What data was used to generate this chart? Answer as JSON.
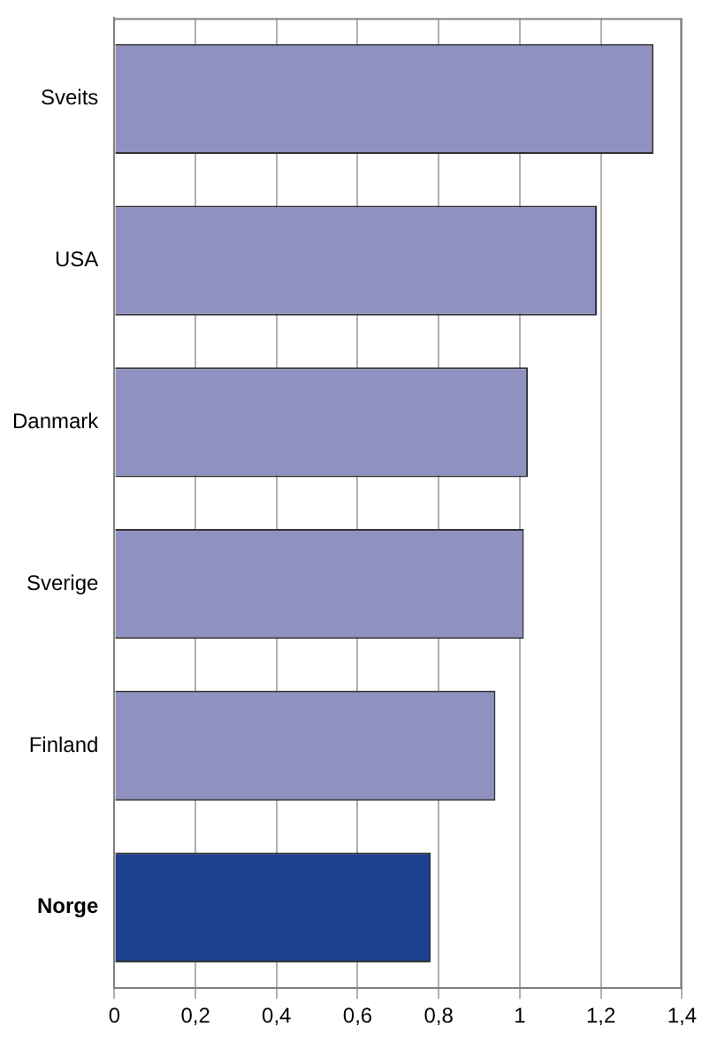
{
  "chart_data": {
    "type": "bar",
    "orientation": "horizontal",
    "categories": [
      "Sveits",
      "USA",
      "Danmark",
      "Sverige",
      "Finland",
      "Norge"
    ],
    "values": [
      1.33,
      1.19,
      1.02,
      1.01,
      0.94,
      0.78
    ],
    "colors": [
      "#8f91c1",
      "#8f91c1",
      "#8f91c1",
      "#8f91c1",
      "#8f91c1",
      "#1f3f8f"
    ],
    "xlim": [
      0,
      1.4
    ],
    "xticks": [
      0,
      {
        "value": 0.2,
        "label": "0,2"
      },
      {
        "value": 0.4,
        "label": "0,4"
      },
      {
        "value": 0.6,
        "label": "0,6"
      },
      {
        "value": 0.8,
        "label": "0,8"
      },
      1,
      {
        "value": 1.2,
        "label": "1,2"
      },
      {
        "value": 1.4,
        "label": "1,4"
      }
    ],
    "grid": "x"
  }
}
